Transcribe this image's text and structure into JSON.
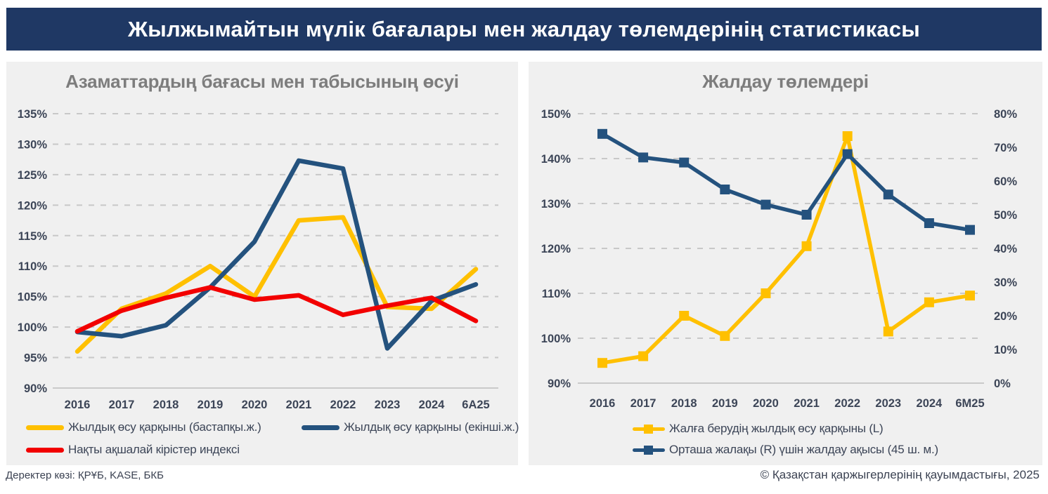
{
  "header": {
    "title": "Жылжымайтын мүлік бағалары мен жалдау төлемдерінің статистикасы"
  },
  "footer": {
    "source": "Деректер көзі: ҚРҰБ, KASE, БКБ",
    "copyright": "© Қазақстан қаржыгерлерінің қауымдастығы, 2025"
  },
  "colors": {
    "header_bg": "#1F3864",
    "panel_bg": "#F0F0F0",
    "title_gray": "#7D7D7D",
    "axis_text": "#3C4557",
    "grid": "#C8C8C8",
    "baseline": "#BDBDBD",
    "yellow": "#FFC000",
    "blue": "#24527E",
    "red": "#F20000"
  },
  "chart_data": [
    {
      "type": "line",
      "title": "Азаматтардың бағасы мен табысының өсуі",
      "categories": [
        "2016",
        "2017",
        "2018",
        "2019",
        "2020",
        "2021",
        "2022",
        "2023",
        "2024",
        "6A25"
      ],
      "grid": "dashed-horizontal",
      "legend_position": "bottom",
      "left_axis": {
        "min": 90,
        "max": 135,
        "tick_values": [
          90,
          95,
          100,
          105,
          110,
          115,
          120,
          125,
          130,
          135
        ],
        "tick_labels": [
          "90%",
          "95%",
          "100%",
          "105%",
          "110%",
          "115%",
          "120%",
          "125%",
          "130%",
          "135%"
        ]
      },
      "series": [
        {
          "name": "Жылдық өсу қарқыны (бастапқы.ж.)",
          "color": "#FFC000",
          "axis": "left",
          "marker": false,
          "values": [
            96,
            103,
            105.5,
            110,
            105,
            117.5,
            118,
            103.3,
            103,
            109.5
          ]
        },
        {
          "name": "Жылдық өсу қарқыны (екінші.ж.)",
          "color": "#24527E",
          "axis": "left",
          "marker": false,
          "values": [
            99.2,
            98.5,
            100.3,
            106.5,
            114,
            127.3,
            126,
            96.5,
            104.3,
            107
          ]
        },
        {
          "name": "Нақты ақшалай кірістер индексі",
          "color": "#F20000",
          "axis": "left",
          "marker": false,
          "values": [
            99.3,
            102.7,
            104.8,
            106.5,
            104.5,
            105.2,
            102,
            103.5,
            104.8,
            101
          ]
        }
      ]
    },
    {
      "type": "line",
      "title": "Жалдау төлемдері",
      "categories": [
        "2016",
        "2017",
        "2018",
        "2019",
        "2020",
        "2021",
        "2022",
        "2023",
        "2024",
        "6M25"
      ],
      "grid": "dashed-horizontal",
      "legend_position": "bottom",
      "left_axis": {
        "min": 90,
        "max": 150,
        "tick_values": [
          90,
          100,
          110,
          120,
          130,
          140,
          150
        ],
        "tick_labels": [
          "90%",
          "100%",
          "110%",
          "120%",
          "130%",
          "140%",
          "150%"
        ]
      },
      "right_axis": {
        "min": 0,
        "max": 80,
        "tick_values": [
          0,
          10,
          20,
          30,
          40,
          50,
          60,
          70,
          80
        ],
        "tick_labels": [
          "0%",
          "10%",
          "20%",
          "30%",
          "40%",
          "50%",
          "60%",
          "70%",
          "80%"
        ]
      },
      "series": [
        {
          "name": "Жалға берудің жылдық өсу қарқыны (L)",
          "color": "#FFC000",
          "axis": "left",
          "marker": true,
          "values": [
            94.5,
            96,
            105,
            100.5,
            110,
            120.5,
            145,
            101.5,
            108,
            109.5
          ]
        },
        {
          "name": "Орташа жалақы (R) үшін жалдау ақысы (45 ш. м.)",
          "color": "#24527E",
          "axis": "right",
          "marker": true,
          "values": [
            74,
            67,
            65.5,
            57.5,
            53,
            50,
            68,
            56,
            47.5,
            45.5
          ]
        }
      ]
    }
  ]
}
